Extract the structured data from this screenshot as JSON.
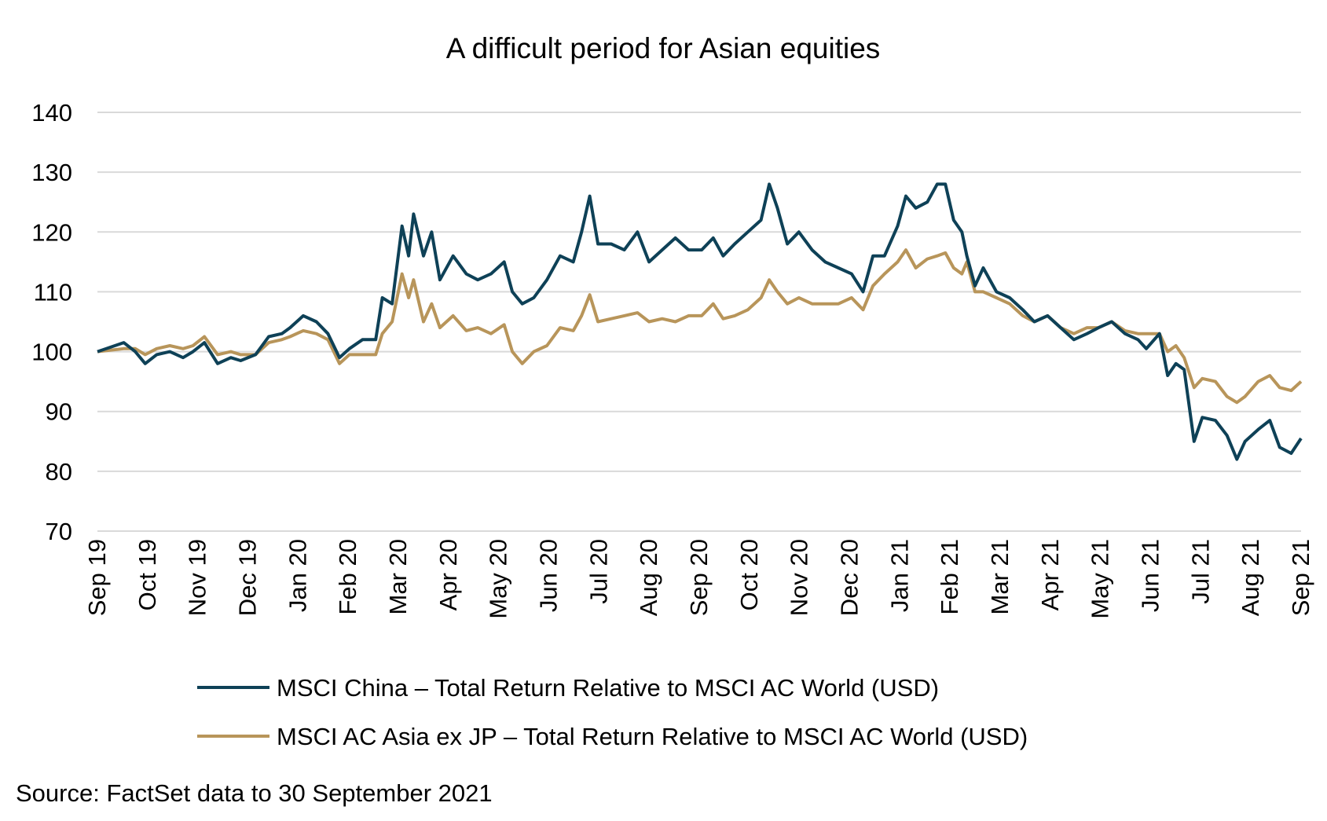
{
  "chart_data": {
    "type": "line",
    "title": "A difficult period for Asian equities",
    "xlabel": "",
    "ylabel": "",
    "ylim": [
      70,
      140
    ],
    "yticks": [
      70,
      80,
      90,
      100,
      110,
      120,
      130,
      140
    ],
    "xlim": [
      "2019-09-30",
      "2021-09-30"
    ],
    "xtick_labels": [
      "Sep 19",
      "Oct 19",
      "Nov 19",
      "Dec 19",
      "Jan 20",
      "Feb 20",
      "Mar 20",
      "Apr 20",
      "May 20",
      "Jun 20",
      "Jul 20",
      "Aug 20",
      "Sep 20",
      "Oct 20",
      "Nov 20",
      "Dec 20",
      "Jan 21",
      "Feb 21",
      "Mar 21",
      "Apr 21",
      "May 21",
      "Jun 21",
      "Jul 21",
      "Aug 21",
      "Sep 21"
    ],
    "grid": "horizontal",
    "legend_placement": "bottom",
    "source": "Source: FactSet data to 30 September 2021",
    "x": [
      "2019-09-30",
      "2019-10-16",
      "2019-10-23",
      "2019-10-29",
      "2019-11-05",
      "2019-11-13",
      "2019-11-21",
      "2019-11-27",
      "2019-12-04",
      "2019-12-12",
      "2019-12-20",
      "2019-12-26",
      "2020-01-04",
      "2020-01-12",
      "2020-01-20",
      "2020-01-25",
      "2020-02-02",
      "2020-02-10",
      "2020-02-17",
      "2020-02-24",
      "2020-03-01",
      "2020-03-09",
      "2020-03-17",
      "2020-03-21",
      "2020-03-27",
      "2020-04-02",
      "2020-04-06",
      "2020-04-09",
      "2020-04-15",
      "2020-04-20",
      "2020-04-25",
      "2020-05-03",
      "2020-05-11",
      "2020-05-18",
      "2020-05-26",
      "2020-06-03",
      "2020-06-08",
      "2020-06-14",
      "2020-06-21",
      "2020-06-29",
      "2020-07-07",
      "2020-07-15",
      "2020-07-20",
      "2020-07-25",
      "2020-07-30",
      "2020-08-07",
      "2020-08-15",
      "2020-08-23",
      "2020-08-30",
      "2020-09-07",
      "2020-09-15",
      "2020-09-23",
      "2020-10-01",
      "2020-10-08",
      "2020-10-14",
      "2020-10-21",
      "2020-10-29",
      "2020-11-06",
      "2020-11-11",
      "2020-11-16",
      "2020-11-22",
      "2020-11-29",
      "2020-12-07",
      "2020-12-15",
      "2020-12-23",
      "2020-12-31",
      "2021-01-07",
      "2021-01-13",
      "2021-01-20",
      "2021-01-28",
      "2021-02-02",
      "2021-02-08",
      "2021-02-15",
      "2021-02-21",
      "2021-02-26",
      "2021-03-03",
      "2021-03-08",
      "2021-03-11",
      "2021-03-16",
      "2021-03-21",
      "2021-03-29",
      "2021-04-06",
      "2021-04-14",
      "2021-04-21",
      "2021-04-29",
      "2021-05-07",
      "2021-05-15",
      "2021-05-23",
      "2021-05-30",
      "2021-06-07",
      "2021-06-15",
      "2021-06-23",
      "2021-06-28",
      "2021-07-06",
      "2021-07-11",
      "2021-07-16",
      "2021-07-21",
      "2021-07-27",
      "2021-08-01",
      "2021-08-09",
      "2021-08-16",
      "2021-08-22",
      "2021-08-27",
      "2021-09-04",
      "2021-09-11",
      "2021-09-17",
      "2021-09-24",
      "2021-09-30"
    ],
    "series": [
      {
        "name": "MSCI China – Total Return Relative to MSCI AC World (USD)",
        "color": "#0e4157",
        "values": [
          100,
          101.5,
          100,
          98,
          99.5,
          100,
          99,
          100,
          101.5,
          98,
          99,
          98.5,
          99.5,
          102.5,
          103,
          104,
          106,
          105,
          103,
          99,
          100.5,
          102,
          102,
          109,
          108,
          121,
          116,
          123,
          116,
          120,
          112,
          116,
          113,
          112,
          113,
          115,
          110,
          108,
          109,
          112,
          116,
          115,
          120,
          126,
          118,
          118,
          117,
          120,
          115,
          117,
          119,
          117,
          117,
          119,
          116,
          118,
          120,
          122,
          128,
          124,
          118,
          120,
          117,
          115,
          114,
          113,
          110,
          116,
          116,
          121,
          126,
          124,
          125,
          128,
          128,
          122,
          120,
          116,
          111,
          114,
          110,
          109,
          107,
          105,
          106,
          104,
          102,
          103,
          104,
          105,
          103,
          102,
          100.5,
          103,
          96,
          98,
          97,
          85,
          89,
          88.5,
          86,
          82,
          85,
          87,
          88.5,
          84,
          83,
          85.5
        ]
      },
      {
        "name": "MSCI AC Asia ex JP – Total Return Relative to MSCI AC World (USD)",
        "color": "#b8955a",
        "values": [
          100,
          100.5,
          100.5,
          99.5,
          100.5,
          101,
          100.5,
          101,
          102.5,
          99.5,
          100,
          99.5,
          99.5,
          101.5,
          102,
          102.5,
          103.5,
          103,
          102,
          98,
          99.5,
          99.5,
          99.5,
          103,
          105,
          113,
          109,
          112,
          105,
          108,
          104,
          106,
          103.5,
          104,
          103,
          104.5,
          100,
          98,
          100,
          101,
          104,
          103.5,
          106,
          109.5,
          105,
          105.5,
          106,
          106.5,
          105,
          105.5,
          105,
          106,
          106,
          108,
          105.5,
          106,
          107,
          109,
          112,
          110,
          108,
          109,
          108,
          108,
          108,
          109,
          107,
          111,
          113,
          115,
          117,
          114,
          115.5,
          116,
          116.5,
          114,
          113,
          115,
          110,
          110,
          109,
          108,
          106,
          105,
          106,
          104,
          103,
          104,
          104,
          105,
          103.5,
          103,
          103,
          103,
          100,
          101,
          99,
          94,
          95.5,
          95,
          92.5,
          91.5,
          92.5,
          95,
          96,
          94,
          93.5,
          95
        ]
      }
    ]
  }
}
